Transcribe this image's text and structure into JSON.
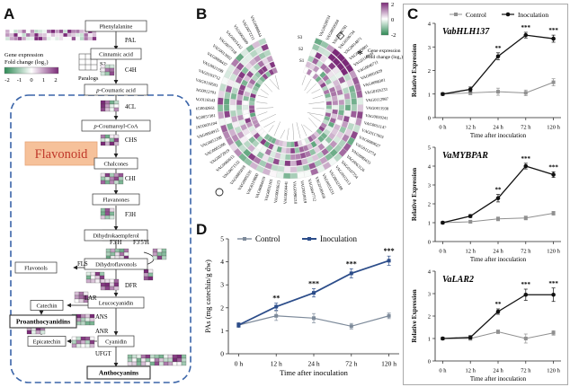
{
  "panels": {
    "a": "A",
    "b": "B",
    "c": "C",
    "d": "D"
  },
  "colors": {
    "heat_high": "#7b2a78",
    "heat_mid": "#ffffff",
    "heat_low": "#2e8a55",
    "control": "#909090",
    "inoculation": "#111111",
    "d_control": "#7d8a9a",
    "d_inoculation": "#2c4d8a",
    "flavonoid_box": "#f6c19a",
    "dashed_border": "#3a64a8"
  },
  "pathway": {
    "nodes": [
      "Phenylalanine",
      "Cinnamic acid",
      "p-Coumaric acid",
      "p-Coumaroyl-CoA",
      "Chalcones",
      "Flavanones",
      "Dihydrokaempferol",
      "Dihydroflavonols",
      "Flavonols",
      "Leucocyanidin",
      "Cyanidin",
      "Catechin",
      "Epicatechin",
      "Proanthocyanidins",
      "Anthocyanins"
    ],
    "enzymes": [
      "PAL",
      "C4H",
      "4CL",
      "CHS",
      "CHI",
      "F3H",
      "F3'H",
      "F3'5'H",
      "FLS",
      "DFR",
      "LAR",
      "ANS",
      "ANR",
      "UFGT"
    ],
    "flavonoid_label": "Flavonoid",
    "legend_title": "Gene expression\nFold change (log₂)",
    "legend_ticks": [
      "-2",
      "-1",
      "0",
      "1",
      "2"
    ],
    "paralogs_label": "Paralogs",
    "stage_labels": [
      "S1",
      "S2",
      "S3"
    ]
  },
  "circos": {
    "genes": [
      "VAG0028934",
      "VAG0050504",
      "VAG0006781",
      "VAG0106734",
      "VAG0014871",
      "VAG0029801",
      "VAG0118999",
      "VAG0046711",
      "VAG0001829",
      "VAG0098301",
      "VAG0105233",
      "VAG0112987",
      "VAG0011938",
      "VAG0059241",
      "VAG0011147",
      "VAG0117003",
      "VAG0089627",
      "VAG0113774",
      "VAG0089433",
      "VAG0063126",
      "VAG0107754",
      "VAG0002313",
      "VAG0032189",
      "VAG0055231",
      "VAG0100458",
      "VAG0047712",
      "VAG0010019",
      "VAG0090210",
      "VAG0034441",
      "VAG0016623",
      "VAG0031101",
      "VAG0084419",
      "VAG0119800",
      "VAG0005591",
      "VAG0005019",
      "VAG0071532",
      "VAG0060613",
      "VAG0072919",
      "VAG0083200",
      "VAG0052208",
      "VAG0004915",
      "VAG0035104",
      "VAG0057381",
      "VAG0042661",
      "VAG0116543",
      "VAG0012701",
      "VAG0118503",
      "VAG0103712",
      "VAG0021199",
      "VAG0008437",
      "VAG0013002",
      "VAG0077318",
      "VAG0015432",
      "VAG0003009",
      "VAG0072211",
      "VAG0098844"
    ],
    "stage_labels": [
      "S3",
      "S2",
      "S1"
    ],
    "legend_title": "Gene expression\nFold change (log₂)",
    "legend_ticks": [
      "2",
      "0",
      "-2"
    ],
    "marks": [
      "◇",
      "*"
    ]
  },
  "legend_c": {
    "control": "Control",
    "inoculation": "Inoculation"
  },
  "legend_d": {
    "control": "Control",
    "inoculation": "Inoculation"
  },
  "chart_data": [
    {
      "type": "line",
      "title": "VabHLH137",
      "categories": [
        "0 h",
        "12 h",
        "24 h",
        "72 h",
        "120 h"
      ],
      "xlabel": "Time after inoculation",
      "ylabel": "Relative Expression",
      "ylim": [
        0,
        4
      ],
      "yticks": [
        0,
        1,
        2,
        3,
        4
      ],
      "series": [
        {
          "name": "Control",
          "values": [
            1.0,
            1.05,
            1.1,
            1.05,
            1.5
          ],
          "err": [
            0.05,
            0.08,
            0.15,
            0.12,
            0.15
          ]
        },
        {
          "name": "Inoculation",
          "values": [
            1.0,
            1.2,
            2.6,
            3.5,
            3.35
          ],
          "err": [
            0.05,
            0.1,
            0.15,
            0.12,
            0.15
          ]
        }
      ],
      "significance": [
        "",
        "",
        "**",
        "***",
        "***"
      ]
    },
    {
      "type": "line",
      "title": "VaMYBPAR",
      "categories": [
        "0 h",
        "12 h",
        "24 h",
        "72 h",
        "120 h"
      ],
      "xlabel": "Time after inoculation",
      "ylabel": "Relative Expression",
      "ylim": [
        0,
        5
      ],
      "yticks": [
        0,
        1,
        2,
        3,
        4,
        5
      ],
      "series": [
        {
          "name": "Control",
          "values": [
            1.0,
            1.05,
            1.2,
            1.25,
            1.5
          ],
          "err": [
            0.05,
            0.08,
            0.1,
            0.1,
            0.1
          ]
        },
        {
          "name": "Inoculation",
          "values": [
            1.0,
            1.35,
            2.3,
            4.0,
            3.55
          ],
          "err": [
            0.05,
            0.08,
            0.2,
            0.15,
            0.15
          ]
        }
      ],
      "significance": [
        "",
        "",
        "**",
        "***",
        "***"
      ]
    },
    {
      "type": "line",
      "title": "VaLAR2",
      "categories": [
        "0 h",
        "12 h",
        "24 h",
        "72 h",
        "120 h"
      ],
      "xlabel": "Time after inoculation",
      "ylabel": "Relative Expression",
      "ylim": [
        0,
        4
      ],
      "yticks": [
        0,
        1,
        2,
        3,
        4
      ],
      "series": [
        {
          "name": "Control",
          "values": [
            1.0,
            1.0,
            1.3,
            1.0,
            1.25
          ],
          "err": [
            0.05,
            0.08,
            0.08,
            0.2,
            0.1
          ]
        },
        {
          "name": "Inoculation",
          "values": [
            1.0,
            1.05,
            2.2,
            2.95,
            2.95
          ],
          "err": [
            0.05,
            0.08,
            0.12,
            0.25,
            0.3
          ]
        }
      ],
      "significance": [
        "",
        "",
        "**",
        "***",
        "***"
      ]
    },
    {
      "type": "line",
      "title": "",
      "categories": [
        "0 h",
        "12 h",
        "24 h",
        "72 h",
        "120 h"
      ],
      "xlabel": "Time after inoculation",
      "ylabel": "PAs (mg catechin/g dw)",
      "ylim": [
        0,
        5
      ],
      "yticks": [
        0,
        1,
        2,
        3,
        4,
        5
      ],
      "series": [
        {
          "name": "Control",
          "values": [
            1.25,
            1.65,
            1.55,
            1.2,
            1.65
          ],
          "err": [
            0.1,
            0.2,
            0.2,
            0.12,
            0.12
          ]
        },
        {
          "name": "Inoculation",
          "values": [
            1.25,
            2.05,
            2.65,
            3.5,
            4.05
          ],
          "err": [
            0.1,
            0.15,
            0.18,
            0.2,
            0.2
          ]
        }
      ],
      "significance": [
        "",
        "**",
        "***",
        "***",
        "***"
      ]
    }
  ]
}
